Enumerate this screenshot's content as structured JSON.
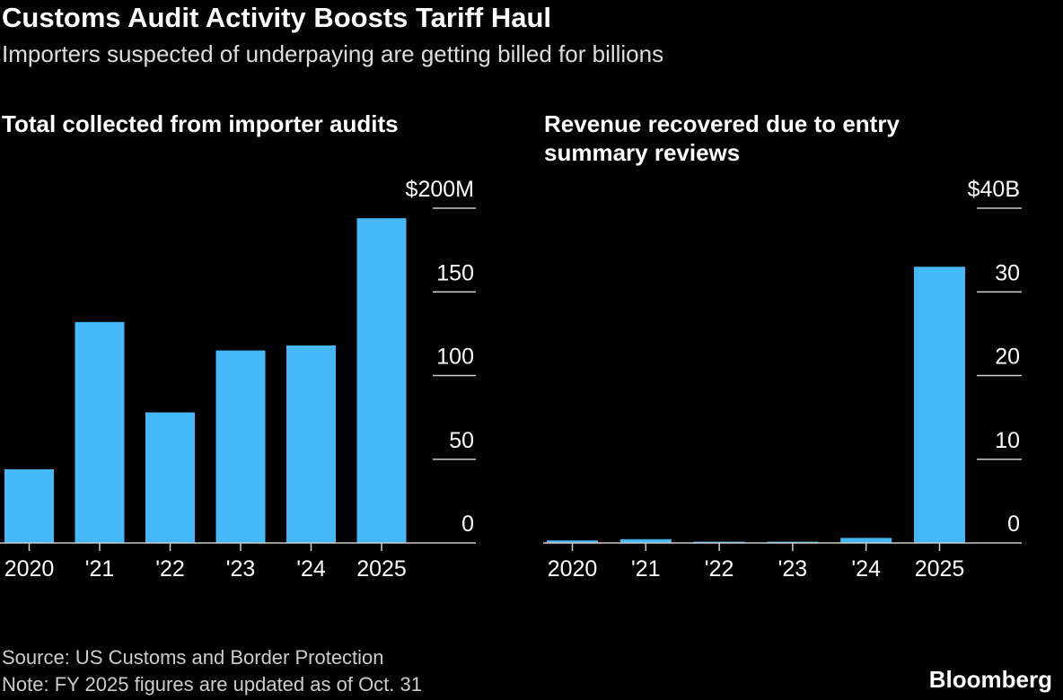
{
  "title": "Customs Audit Activity Boosts Tariff Haul",
  "subtitle": "Importers suspected of underpaying are getting billed for billions",
  "source": "Source: US Customs and Border Protection",
  "note": "Note: FY 2025 figures are updated as of Oct. 31",
  "logo": "Bloomberg",
  "colors": {
    "bar": "#44b8f8",
    "axis": "#cccccc"
  },
  "chart_data": [
    {
      "type": "bar",
      "title": "Total collected from importer audits",
      "categories": [
        "2020",
        "'21",
        "'22",
        "'23",
        "'24",
        "2025"
      ],
      "values": [
        44,
        132,
        78,
        115,
        118,
        194
      ],
      "ylim": [
        0,
        200
      ],
      "yticks": [
        0,
        50,
        100,
        150,
        200
      ],
      "ytick_labels": [
        "0",
        "50",
        "100",
        "150",
        "$200M"
      ],
      "xlabel": "",
      "ylabel": ""
    },
    {
      "type": "bar",
      "title": "Revenue recovered due to entry summary reviews",
      "categories": [
        "2020",
        "'21",
        "'22",
        "'23",
        "'24",
        "2025"
      ],
      "values": [
        0.3,
        0.45,
        0.15,
        0.15,
        0.6,
        33
      ],
      "ylim": [
        0,
        40
      ],
      "yticks": [
        0,
        10,
        20,
        30,
        40
      ],
      "ytick_labels": [
        "0",
        "10",
        "20",
        "30",
        "$40B"
      ],
      "xlabel": "",
      "ylabel": ""
    }
  ]
}
